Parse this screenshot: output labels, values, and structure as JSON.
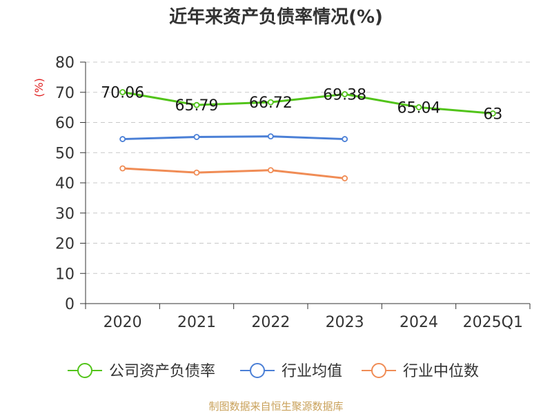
{
  "chart_data": {
    "type": "line",
    "title": "近年来资产负债率情况(%)",
    "y_unit_label": "(%)",
    "categories": [
      "2020",
      "2021",
      "2022",
      "2023",
      "2024",
      "2025Q1"
    ],
    "ylim": [
      0,
      80
    ],
    "yticks": [
      0,
      10,
      20,
      30,
      40,
      50,
      60,
      70,
      80
    ],
    "grid": true,
    "legend_position": "bottom",
    "series": [
      {
        "name": "公司资产负债率",
        "color": "#52c41a",
        "values": [
          70.06,
          65.79,
          66.72,
          69.38,
          65.04,
          63
        ],
        "labels": [
          "70.06",
          "65.79",
          "66.72",
          "69.38",
          "65.04",
          "63"
        ]
      },
      {
        "name": "行业均值",
        "color": "#4a7fd6",
        "values": [
          54.5,
          55.2,
          55.4,
          54.5,
          null,
          null
        ]
      },
      {
        "name": "行业中位数",
        "color": "#f08c55",
        "values": [
          44.8,
          43.4,
          44.2,
          41.5,
          null,
          null
        ]
      }
    ]
  },
  "footer": {
    "source": "制图数据来自恒生聚源数据库"
  }
}
